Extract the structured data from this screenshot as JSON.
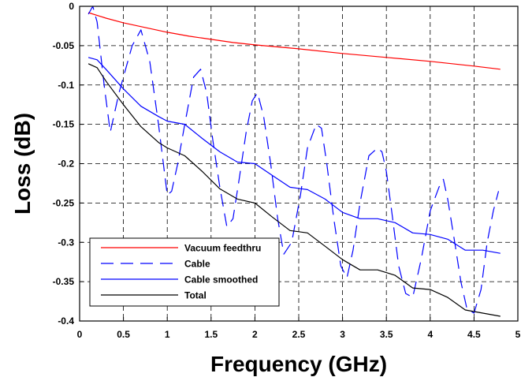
{
  "chart_data": {
    "type": "line",
    "xlabel": "Frequency (GHz)",
    "ylabel": "Loss (dB)",
    "xlim": [
      0,
      5
    ],
    "ylim": [
      -0.4,
      0
    ],
    "xticks": [
      0,
      0.5,
      1,
      1.5,
      2,
      2.5,
      3,
      3.5,
      4,
      4.5,
      5
    ],
    "yticks": [
      0,
      -0.05,
      -0.1,
      -0.15,
      -0.2,
      -0.25,
      -0.3,
      -0.35,
      -0.4
    ],
    "xtick_labels": [
      "0",
      "0.5",
      "1",
      "1.5",
      "2",
      "2.5",
      "3",
      "3.5",
      "4",
      "4.5",
      "5"
    ],
    "ytick_labels": [
      "0",
      "-0.05",
      "-0.1",
      "-0.15",
      "-0.2",
      "-0.25",
      "-0.3",
      "-0.35",
      "-0.4"
    ],
    "grid": true,
    "legend_position": "bottom-left",
    "series": [
      {
        "name": "Vacuum feedthru",
        "color": "#ff0000",
        "style": "solid",
        "x": [
          0.1,
          0.3,
          0.5,
          0.75,
          1.0,
          1.25,
          1.5,
          1.75,
          2.0,
          2.5,
          3.0,
          3.5,
          4.0,
          4.5,
          4.8
        ],
        "y": [
          -0.008,
          -0.015,
          -0.021,
          -0.027,
          -0.033,
          -0.038,
          -0.042,
          -0.046,
          -0.049,
          -0.054,
          -0.06,
          -0.065,
          -0.07,
          -0.076,
          -0.08
        ]
      },
      {
        "name": "Cable",
        "color": "#0000ff",
        "style": "dashed",
        "x": [
          0.1,
          0.15,
          0.2,
          0.28,
          0.35,
          0.45,
          0.6,
          0.7,
          0.8,
          0.9,
          1.0,
          1.05,
          1.12,
          1.2,
          1.3,
          1.38,
          1.45,
          1.52,
          1.6,
          1.68,
          1.75,
          1.82,
          1.9,
          1.97,
          2.03,
          2.1,
          2.18,
          2.26,
          2.33,
          2.42,
          2.52,
          2.6,
          2.7,
          2.76,
          2.82,
          2.9,
          2.98,
          3.05,
          3.12,
          3.2,
          3.3,
          3.4,
          3.45,
          3.5,
          3.56,
          3.64,
          3.72,
          3.8,
          3.9,
          4.0,
          4.1,
          4.15,
          4.2,
          4.28,
          4.35,
          4.42,
          4.5,
          4.58,
          4.65,
          4.72,
          4.78
        ],
        "y": [
          -0.01,
          0.0,
          -0.02,
          -0.1,
          -0.16,
          -0.11,
          -0.05,
          -0.03,
          -0.07,
          -0.15,
          -0.24,
          -0.235,
          -0.2,
          -0.15,
          -0.09,
          -0.08,
          -0.11,
          -0.17,
          -0.23,
          -0.28,
          -0.27,
          -0.22,
          -0.16,
          -0.12,
          -0.11,
          -0.14,
          -0.2,
          -0.27,
          -0.315,
          -0.3,
          -0.24,
          -0.18,
          -0.15,
          -0.155,
          -0.2,
          -0.27,
          -0.33,
          -0.345,
          -0.31,
          -0.25,
          -0.19,
          -0.18,
          -0.185,
          -0.21,
          -0.26,
          -0.33,
          -0.365,
          -0.37,
          -0.32,
          -0.26,
          -0.23,
          -0.22,
          -0.245,
          -0.3,
          -0.35,
          -0.385,
          -0.39,
          -0.36,
          -0.3,
          -0.26,
          -0.235
        ]
      },
      {
        "name": "Cable smoothed",
        "color": "#0000ff",
        "style": "solid",
        "x": [
          0.1,
          0.2,
          0.3,
          0.5,
          0.7,
          0.9,
          1.0,
          1.2,
          1.4,
          1.6,
          1.8,
          2.0,
          2.2,
          2.4,
          2.6,
          2.8,
          3.0,
          3.2,
          3.4,
          3.6,
          3.8,
          4.0,
          4.2,
          4.4,
          4.6,
          4.8
        ],
        "y": [
          -0.065,
          -0.068,
          -0.08,
          -0.105,
          -0.127,
          -0.14,
          -0.146,
          -0.15,
          -0.168,
          -0.185,
          -0.198,
          -0.2,
          -0.215,
          -0.23,
          -0.233,
          -0.245,
          -0.262,
          -0.27,
          -0.27,
          -0.275,
          -0.288,
          -0.29,
          -0.296,
          -0.31,
          -0.31,
          -0.314
        ]
      },
      {
        "name": "Total",
        "color": "#000000",
        "style": "solid",
        "x": [
          0.1,
          0.2,
          0.3,
          0.5,
          0.7,
          0.9,
          1.0,
          1.2,
          1.4,
          1.6,
          1.8,
          2.0,
          2.2,
          2.4,
          2.6,
          2.8,
          3.0,
          3.2,
          3.4,
          3.6,
          3.8,
          4.0,
          4.2,
          4.4,
          4.6,
          4.8
        ],
        "y": [
          -0.073,
          -0.078,
          -0.095,
          -0.125,
          -0.153,
          -0.173,
          -0.18,
          -0.19,
          -0.21,
          -0.232,
          -0.245,
          -0.25,
          -0.268,
          -0.285,
          -0.288,
          -0.305,
          -0.322,
          -0.335,
          -0.335,
          -0.342,
          -0.358,
          -0.36,
          -0.37,
          -0.386,
          -0.39,
          -0.394
        ]
      }
    ]
  }
}
